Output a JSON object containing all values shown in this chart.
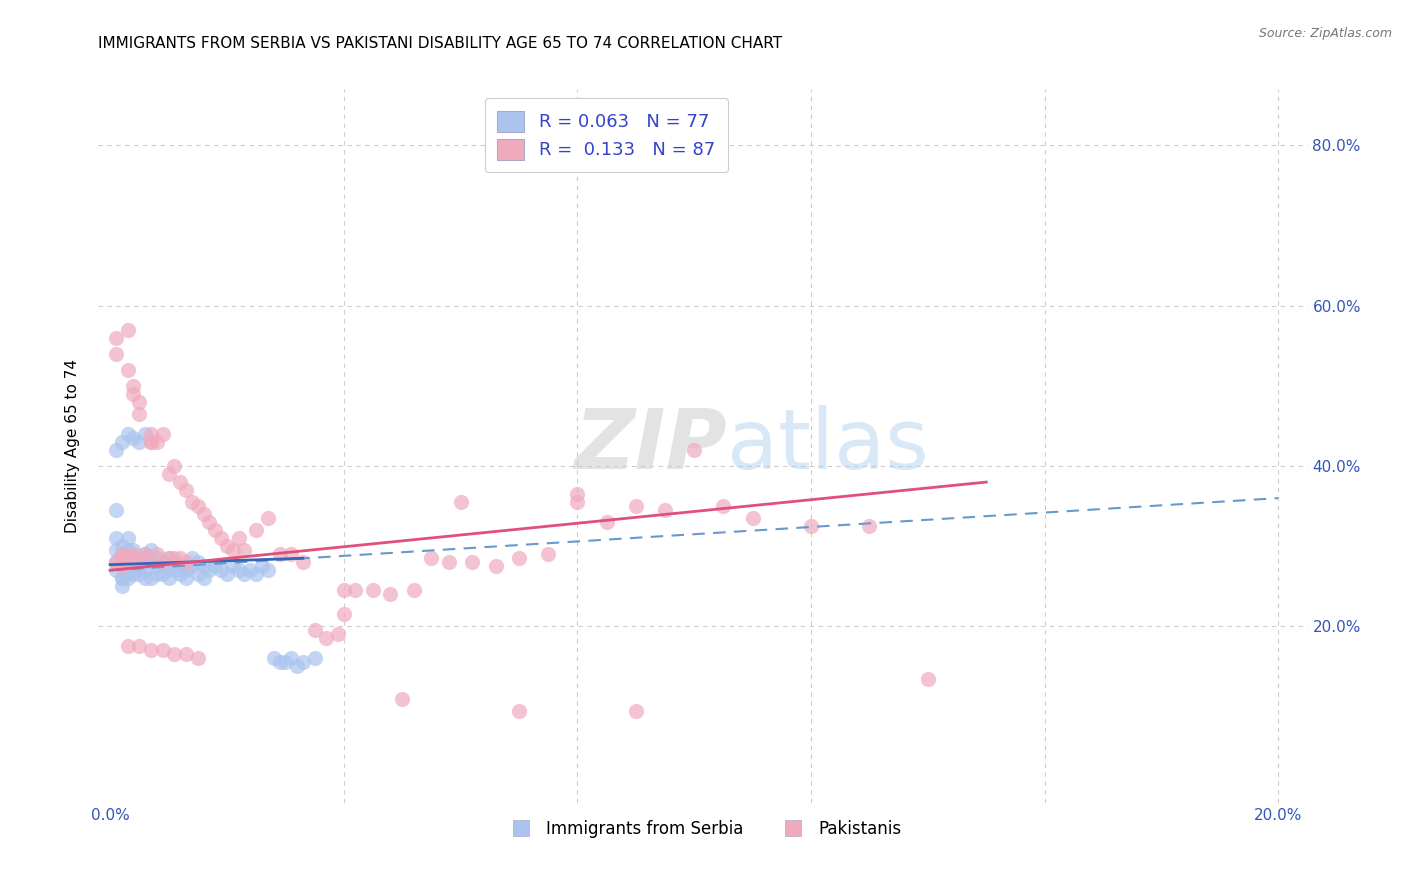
{
  "title": "IMMIGRANTS FROM SERBIA VS PAKISTANI DISABILITY AGE 65 TO 74 CORRELATION CHART",
  "source": "Source: ZipAtlas.com",
  "ylabel": "Disability Age 65 to 74",
  "xlim": [
    -0.002,
    0.205
  ],
  "ylim": [
    -0.02,
    0.87
  ],
  "xtick_positions": [
    0.0,
    0.04,
    0.08,
    0.12,
    0.16,
    0.2
  ],
  "xtick_labels": [
    "0.0%",
    "",
    "",
    "",
    "",
    "20.0%"
  ],
  "ytick_positions": [
    0.0,
    0.2,
    0.4,
    0.6,
    0.8
  ],
  "ytick_labels": [
    "",
    "20.0%",
    "40.0%",
    "60.0%",
    "80.0%"
  ],
  "background_color": "#ffffff",
  "grid_color": "#cccccc",
  "serbia_color": "#aac4ee",
  "pakistan_color": "#f0aabe",
  "serbia_line_color": "#3366bb",
  "pakistan_line_color": "#e0507a",
  "dash_line_color": "#6699cc",
  "serbia_R": 0.063,
  "serbia_N": 77,
  "pakistan_R": 0.133,
  "pakistan_N": 87,
  "legend_label_serbia": "Immigrants from Serbia",
  "legend_label_pakistan": "Pakistanis",
  "watermark_zip": "ZIP",
  "watermark_atlas": "atlas",
  "serbia_x": [
    0.001,
    0.001,
    0.001,
    0.001,
    0.001,
    0.002,
    0.002,
    0.002,
    0.002,
    0.002,
    0.002,
    0.003,
    0.003,
    0.003,
    0.003,
    0.003,
    0.003,
    0.004,
    0.004,
    0.004,
    0.004,
    0.004,
    0.005,
    0.005,
    0.005,
    0.005,
    0.006,
    0.006,
    0.006,
    0.006,
    0.007,
    0.007,
    0.007,
    0.008,
    0.008,
    0.008,
    0.009,
    0.009,
    0.01,
    0.01,
    0.01,
    0.011,
    0.011,
    0.012,
    0.012,
    0.013,
    0.013,
    0.014,
    0.014,
    0.015,
    0.015,
    0.016,
    0.016,
    0.017,
    0.018,
    0.019,
    0.02,
    0.021,
    0.022,
    0.023,
    0.024,
    0.025,
    0.026,
    0.027,
    0.028,
    0.029,
    0.03,
    0.031,
    0.032,
    0.033,
    0.035,
    0.001,
    0.002,
    0.003,
    0.004,
    0.005,
    0.006
  ],
  "serbia_y": [
    0.27,
    0.28,
    0.295,
    0.31,
    0.345,
    0.25,
    0.26,
    0.275,
    0.29,
    0.3,
    0.26,
    0.265,
    0.28,
    0.295,
    0.31,
    0.26,
    0.275,
    0.265,
    0.28,
    0.295,
    0.27,
    0.285,
    0.275,
    0.285,
    0.265,
    0.275,
    0.27,
    0.28,
    0.29,
    0.26,
    0.28,
    0.295,
    0.26,
    0.275,
    0.285,
    0.265,
    0.28,
    0.265,
    0.275,
    0.26,
    0.285,
    0.27,
    0.28,
    0.275,
    0.265,
    0.27,
    0.26,
    0.275,
    0.285,
    0.28,
    0.265,
    0.275,
    0.26,
    0.27,
    0.275,
    0.27,
    0.265,
    0.275,
    0.27,
    0.265,
    0.27,
    0.265,
    0.275,
    0.27,
    0.16,
    0.155,
    0.155,
    0.16,
    0.15,
    0.155,
    0.16,
    0.42,
    0.43,
    0.44,
    0.435,
    0.43,
    0.44
  ],
  "pakistan_x": [
    0.001,
    0.001,
    0.001,
    0.002,
    0.002,
    0.002,
    0.002,
    0.003,
    0.003,
    0.003,
    0.003,
    0.004,
    0.004,
    0.004,
    0.004,
    0.005,
    0.005,
    0.005,
    0.006,
    0.006,
    0.007,
    0.007,
    0.007,
    0.008,
    0.008,
    0.009,
    0.009,
    0.01,
    0.01,
    0.011,
    0.011,
    0.012,
    0.012,
    0.013,
    0.013,
    0.014,
    0.015,
    0.016,
    0.017,
    0.018,
    0.019,
    0.02,
    0.021,
    0.022,
    0.023,
    0.025,
    0.027,
    0.029,
    0.031,
    0.033,
    0.035,
    0.037,
    0.039,
    0.042,
    0.045,
    0.048,
    0.052,
    0.055,
    0.058,
    0.062,
    0.066,
    0.07,
    0.075,
    0.08,
    0.085,
    0.09,
    0.095,
    0.1,
    0.105,
    0.11,
    0.12,
    0.13,
    0.14,
    0.003,
    0.005,
    0.007,
    0.009,
    0.011,
    0.013,
    0.015,
    0.04,
    0.06,
    0.08,
    0.04,
    0.05,
    0.07,
    0.09
  ],
  "pakistan_y": [
    0.54,
    0.28,
    0.56,
    0.275,
    0.29,
    0.285,
    0.28,
    0.57,
    0.52,
    0.28,
    0.285,
    0.5,
    0.49,
    0.29,
    0.285,
    0.48,
    0.465,
    0.28,
    0.29,
    0.285,
    0.43,
    0.44,
    0.43,
    0.43,
    0.29,
    0.44,
    0.28,
    0.39,
    0.285,
    0.4,
    0.285,
    0.38,
    0.285,
    0.37,
    0.28,
    0.355,
    0.35,
    0.34,
    0.33,
    0.32,
    0.31,
    0.3,
    0.295,
    0.31,
    0.295,
    0.32,
    0.335,
    0.29,
    0.29,
    0.28,
    0.195,
    0.185,
    0.19,
    0.245,
    0.245,
    0.24,
    0.245,
    0.285,
    0.28,
    0.28,
    0.275,
    0.285,
    0.29,
    0.365,
    0.33,
    0.35,
    0.345,
    0.42,
    0.35,
    0.335,
    0.325,
    0.325,
    0.135,
    0.175,
    0.175,
    0.17,
    0.17,
    0.165,
    0.165,
    0.16,
    0.215,
    0.355,
    0.355,
    0.245,
    0.11,
    0.095,
    0.095
  ],
  "serbia_trend_x0": 0.0,
  "serbia_trend_x1": 0.033,
  "serbia_trend_y0": 0.277,
  "serbia_trend_y1": 0.285,
  "pakistan_trend_x0": 0.0,
  "pakistan_trend_x1": 0.15,
  "pakistan_trend_y0": 0.27,
  "pakistan_trend_y1": 0.38,
  "dash_trend_x0": 0.0,
  "dash_trend_x1": 0.2,
  "dash_trend_y0": 0.27,
  "dash_trend_y1": 0.36
}
